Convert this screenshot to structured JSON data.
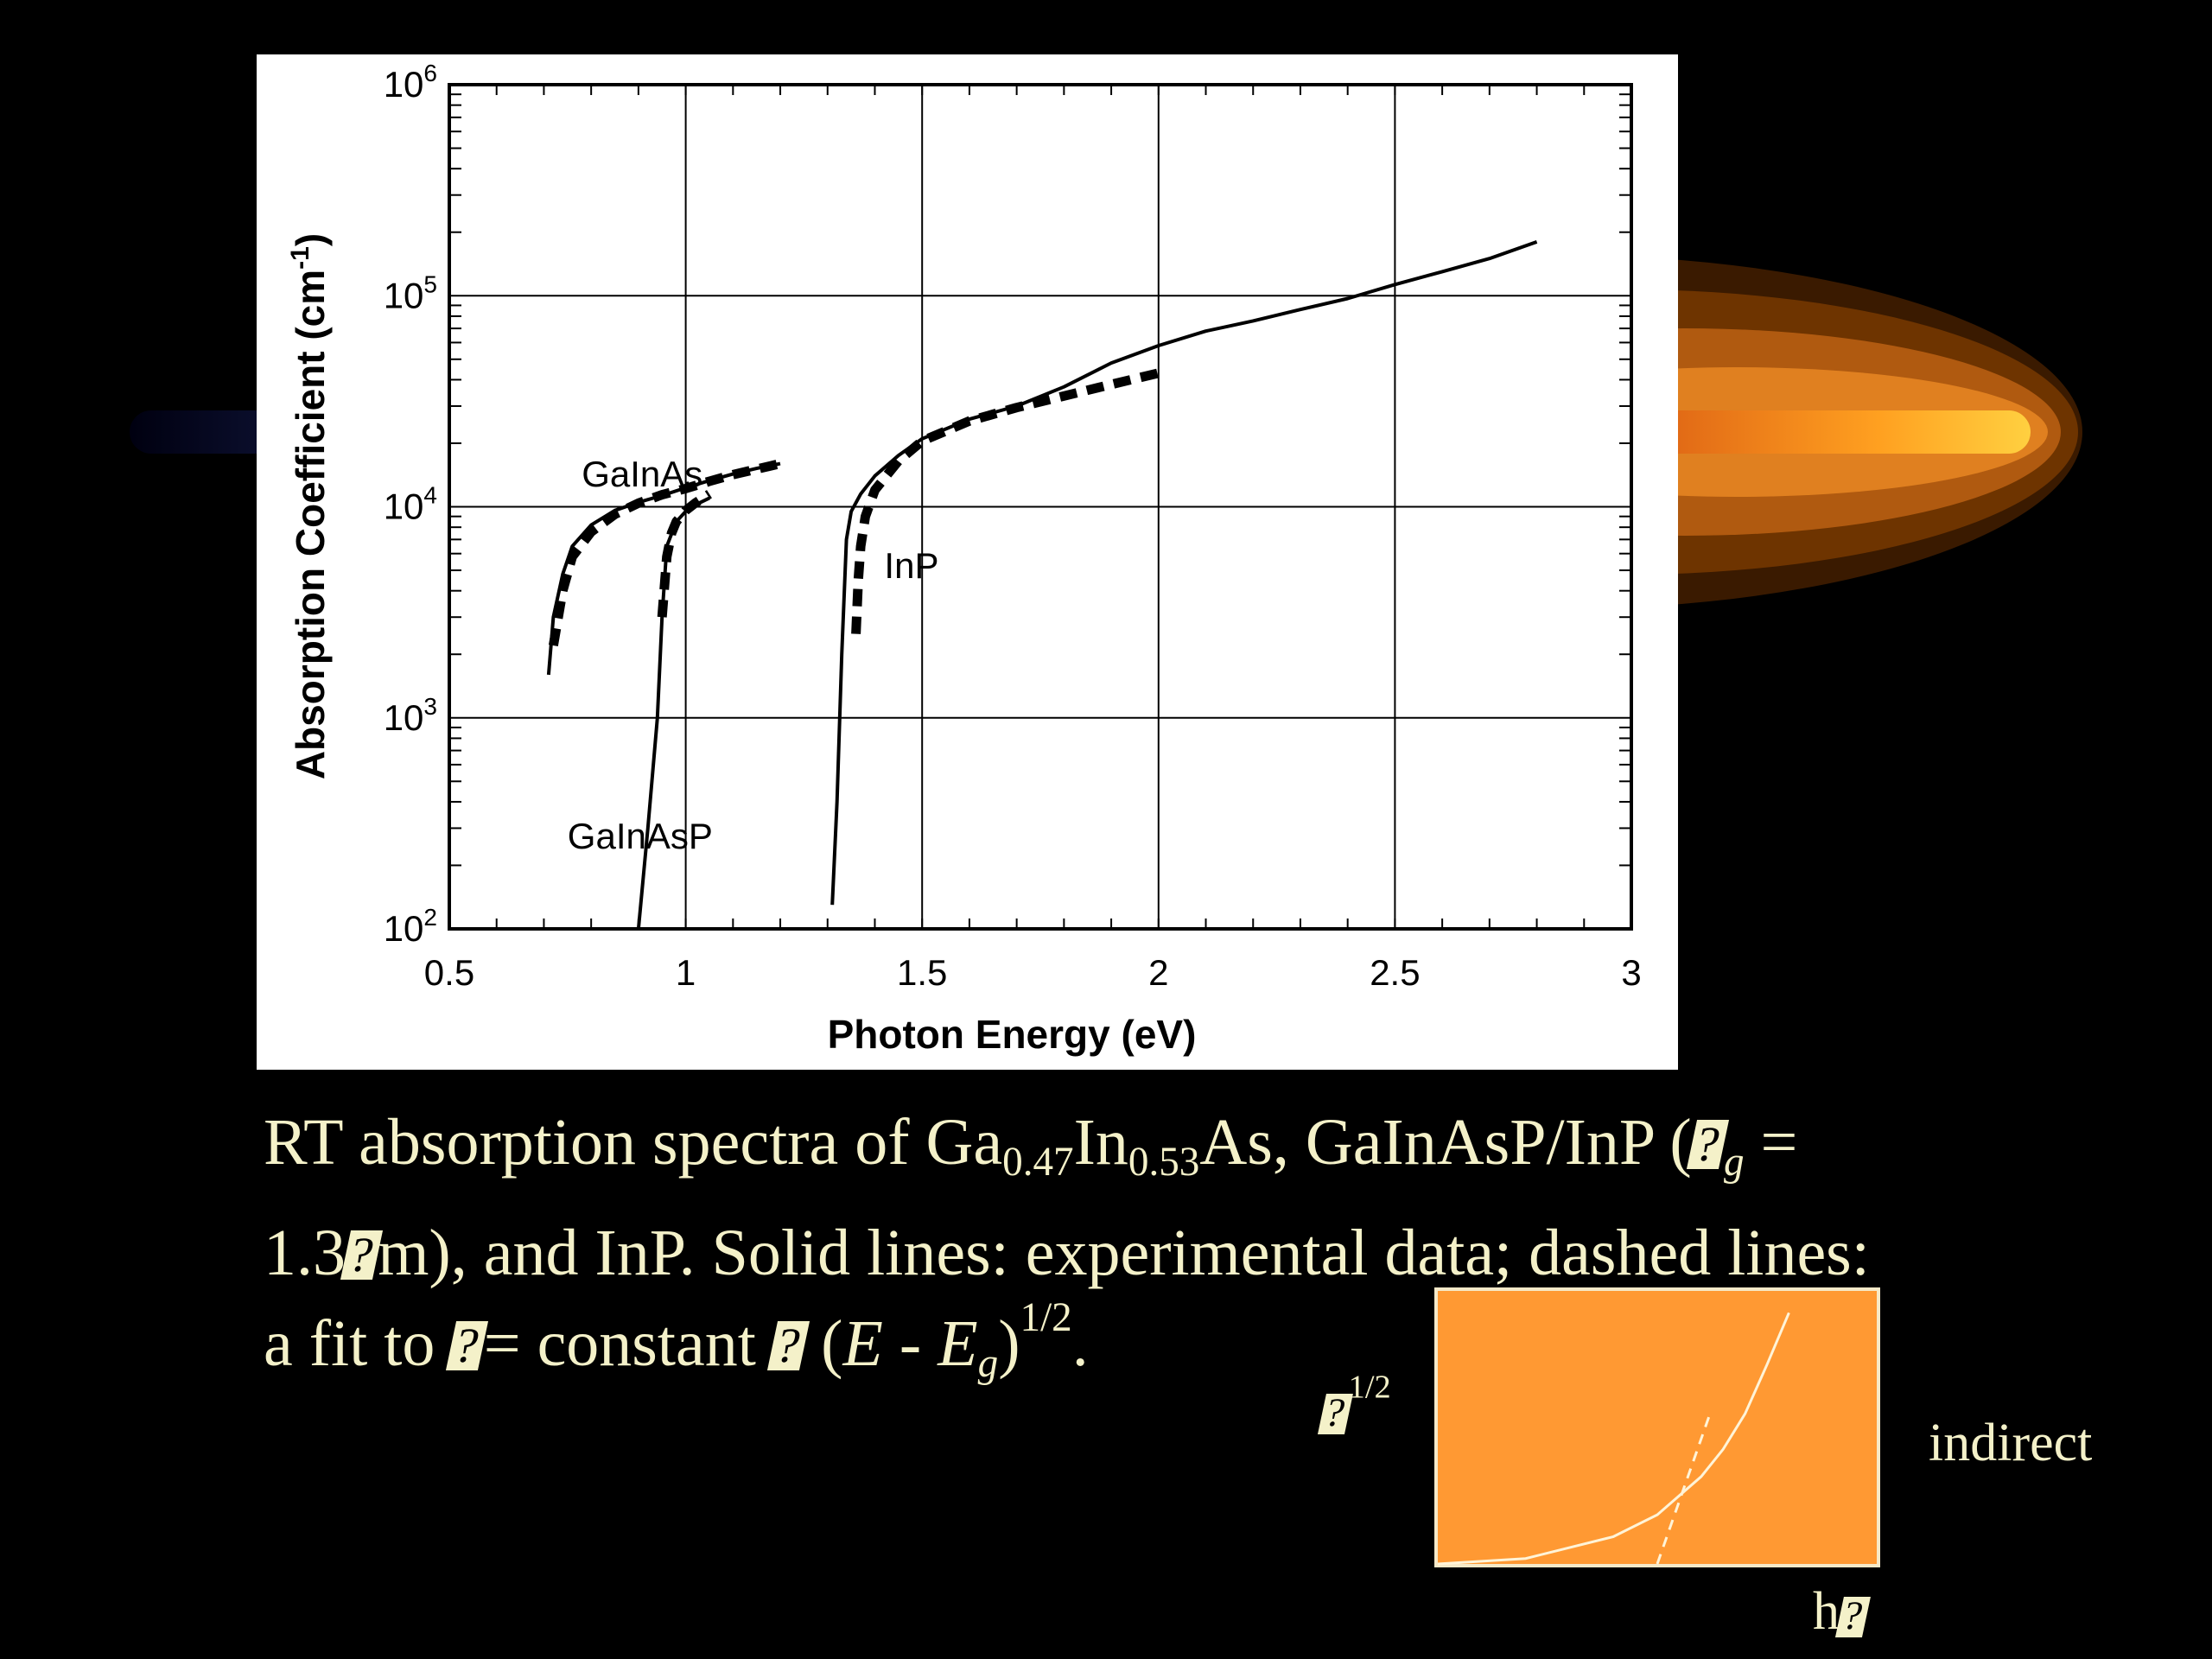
{
  "decoration": {
    "flare_colors": [
      "#3a1a00",
      "#7a3a00",
      "#c86410",
      "#ff9a20",
      "#ffd040"
    ]
  },
  "chart_data": [
    {
      "type": "line",
      "title": "",
      "xlabel": "Photon Energy (eV)",
      "ylabel_prefix": "Absorption Coefficient (cm",
      "ylabel_sup": "-1",
      "ylabel_suffix": ")",
      "xlim": [
        0.5,
        3
      ],
      "x_ticks": [
        "0.5",
        "1",
        "1.5",
        "2",
        "2.5",
        "3"
      ],
      "y_scale": "log",
      "ylim": [
        100,
        1000000
      ],
      "y_ticks": [
        {
          "base": "10",
          "exp": "2"
        },
        {
          "base": "10",
          "exp": "3"
        },
        {
          "base": "10",
          "exp": "4"
        },
        {
          "base": "10",
          "exp": "5"
        },
        {
          "base": "10",
          "exp": "6"
        }
      ],
      "grid": true,
      "annotations": [
        {
          "text": "GaInAs",
          "x": 0.78,
          "y": 12500
        },
        {
          "text": "GaInAsP",
          "x": 0.75,
          "y": 240
        },
        {
          "text": "InP",
          "x": 1.42,
          "y": 4600
        }
      ],
      "series": [
        {
          "style": "solid",
          "x": [
            0.71,
            0.72,
            0.74,
            0.76,
            0.8,
            0.85,
            0.9,
            0.95,
            1.0,
            1.05,
            1.1,
            1.15,
            1.2
          ],
          "y": [
            1600,
            3000,
            4800,
            6500,
            8200,
            9600,
            10500,
            11300,
            12300,
            13300,
            14300,
            15200,
            16000
          ]
        },
        {
          "style": "dashed",
          "x": [
            0.72,
            0.74,
            0.76,
            0.8,
            0.85,
            0.9,
            0.95,
            1.0,
            1.05,
            1.1,
            1.2
          ],
          "y": [
            2200,
            4000,
            5800,
            7600,
            9200,
            10400,
            11400,
            12200,
            13200,
            14200,
            16000
          ]
        },
        {
          "style": "solid",
          "x": [
            0.9,
            0.92,
            0.94,
            0.95,
            0.96,
            0.98,
            1.0,
            1.02,
            1.05
          ],
          "y": [
            100,
            300,
            1000,
            3000,
            6500,
            8500,
            9500,
            10200,
            11000
          ]
        },
        {
          "style": "dashed",
          "x": [
            0.95,
            0.955,
            0.96,
            0.97,
            0.98,
            1.0,
            1.02,
            1.05
          ],
          "y": [
            3000,
            4200,
            5800,
            7500,
            8500,
            9600,
            10400,
            11500
          ]
        },
        {
          "style": "solid",
          "x": [
            1.31,
            1.32,
            1.33,
            1.34,
            1.35,
            1.37,
            1.4,
            1.45,
            1.5,
            1.6,
            1.7,
            1.8,
            1.9,
            2.0,
            2.1,
            2.2,
            2.3,
            2.4,
            2.5,
            2.6,
            2.7,
            2.8
          ],
          "y": [
            130,
            400,
            2000,
            7000,
            9500,
            11500,
            14000,
            17500,
            21000,
            26000,
            30000,
            37000,
            48000,
            58000,
            68000,
            76000,
            86000,
            97000,
            113000,
            130000,
            150000,
            180000
          ]
        },
        {
          "style": "dashed",
          "x": [
            1.36,
            1.365,
            1.37,
            1.38,
            1.4,
            1.45,
            1.5,
            1.6,
            1.7,
            1.8,
            1.9,
            2.0
          ],
          "y": [
            2500,
            4500,
            6500,
            9000,
            12000,
            16500,
            20500,
            25500,
            29500,
            33500,
            38000,
            43000
          ]
        }
      ]
    },
    {
      "type": "line",
      "y_label_sup": "1/2",
      "x_label_suffix": "h",
      "series": [
        {
          "style": "solid",
          "x": [
            0.0,
            0.2,
            0.4,
            0.5,
            0.6,
            0.65,
            0.7,
            0.75,
            0.8
          ],
          "y": [
            0.0,
            0.02,
            0.1,
            0.18,
            0.32,
            0.42,
            0.55,
            0.73,
            0.92
          ]
        },
        {
          "style": "dashed",
          "x": [
            0.5,
            0.62
          ],
          "y": [
            0.0,
            0.55
          ]
        }
      ]
    }
  ],
  "caption": {
    "l1_a": "RT absorption spectra of Ga",
    "l1_sub1": "0.47",
    "l1_b": "In",
    "l1_sub2": "0.53",
    "l1_c": "As, GaInAsP/InP (",
    "l1_sub3": "g",
    "l1_d": " =",
    "l2_a": "1.3",
    "l2_b": "m), and InP. Solid lines: experimental data; dashed lines:",
    "l3_a": "a fit to ",
    "l3_b": "= constant ",
    "l3_c": " (",
    "l3_E": "E",
    "l3_d": " - ",
    "l3_Eg": "E",
    "l3_sub": "g",
    "l3_e": ")",
    "l3_sup": "1/2",
    "l3_f": "."
  },
  "inset_side_label": "indirect"
}
